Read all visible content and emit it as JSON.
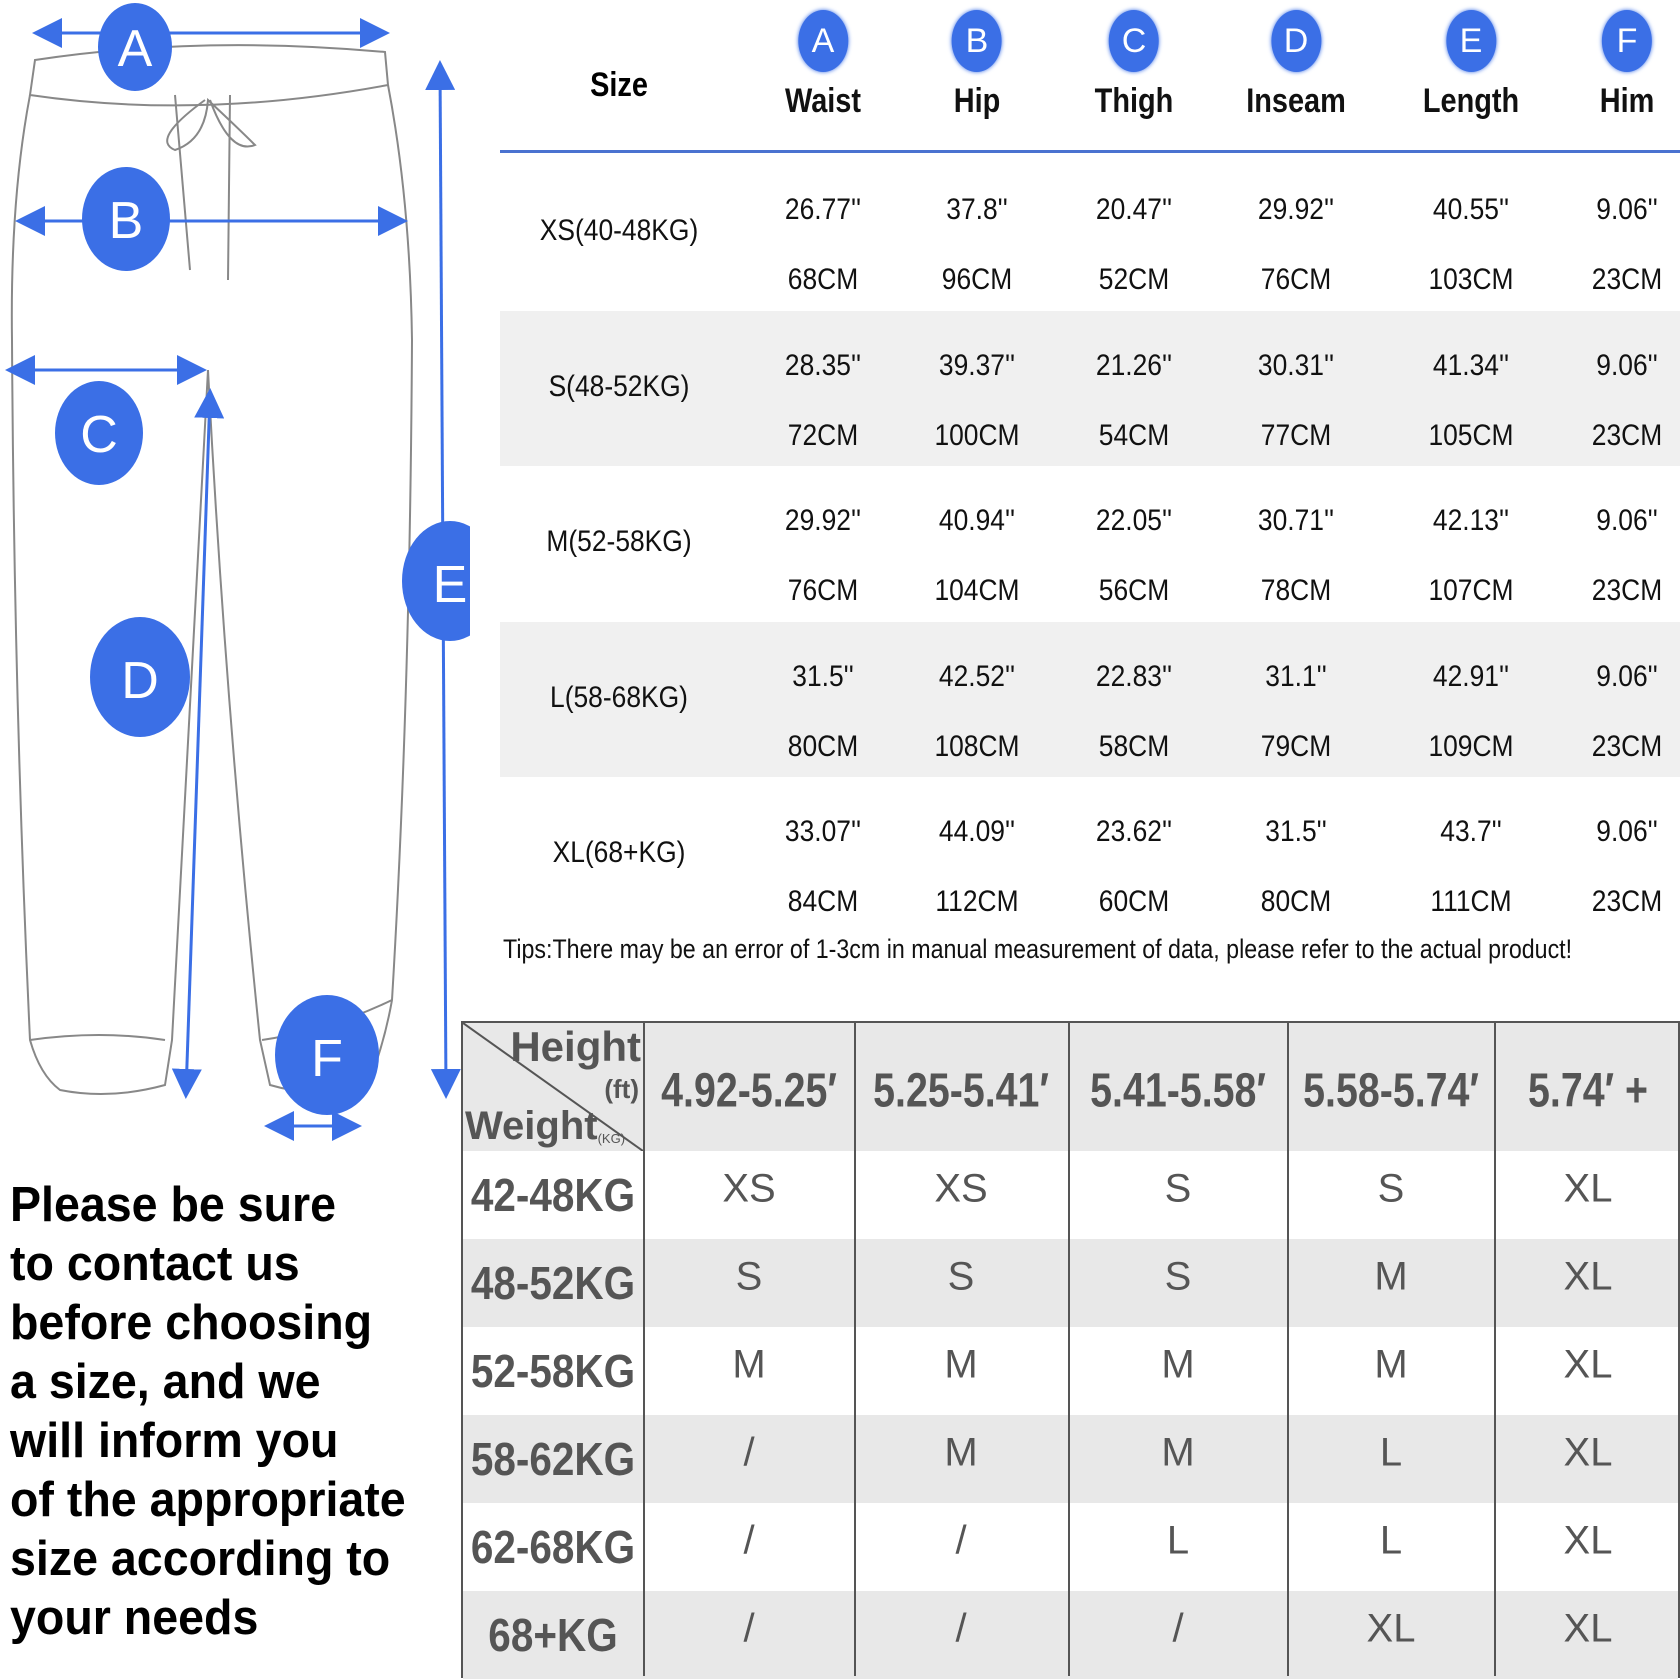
{
  "colors": {
    "accent": "#3b6fe6",
    "rule": "#4a72d0",
    "row_stripe": "#f0f0f0"
  },
  "diagram": {
    "labels": [
      "A",
      "B",
      "C",
      "D",
      "E",
      "F"
    ]
  },
  "measure_table": {
    "size_header": "Size",
    "columns": [
      {
        "letter": "A",
        "label": "Waist"
      },
      {
        "letter": "B",
        "label": "Hip"
      },
      {
        "letter": "C",
        "label": "Thigh"
      },
      {
        "letter": "D",
        "label": "Inseam"
      },
      {
        "letter": "E",
        "label": "Length"
      },
      {
        "letter": "F",
        "label": "Him"
      }
    ],
    "rows": [
      {
        "size": "XS(40-48KG)",
        "inch": [
          "26.77''",
          "37.8''",
          "20.47''",
          "29.92''",
          "40.55''",
          "9.06''"
        ],
        "cm": [
          "68CM",
          "96CM",
          "52CM",
          "76CM",
          "103CM",
          "23CM"
        ]
      },
      {
        "size": "S(48-52KG)",
        "inch": [
          "28.35''",
          "39.37''",
          "21.26''",
          "30.31''",
          "41.34''",
          "9.06''"
        ],
        "cm": [
          "72CM",
          "100CM",
          "54CM",
          "77CM",
          "105CM",
          "23CM"
        ]
      },
      {
        "size": "M(52-58KG)",
        "inch": [
          "29.92''",
          "40.94''",
          "22.05''",
          "30.71''",
          "42.13''",
          "9.06''"
        ],
        "cm": [
          "76CM",
          "104CM",
          "56CM",
          "78CM",
          "107CM",
          "23CM"
        ]
      },
      {
        "size": "L(58-68KG)",
        "inch": [
          "31.5''",
          "42.52''",
          "22.83''",
          "31.1''",
          "42.91''",
          "9.06''"
        ],
        "cm": [
          "80CM",
          "108CM",
          "58CM",
          "79CM",
          "109CM",
          "23CM"
        ]
      },
      {
        "size": "XL(68+KG)",
        "inch": [
          "33.07''",
          "44.09''",
          "23.62''",
          "31.5''",
          "43.7''",
          "9.06''"
        ],
        "cm": [
          "84CM",
          "112CM",
          "60CM",
          "80CM",
          "111CM",
          "23CM"
        ]
      }
    ],
    "tips": "Tips:There may be an error of 1-3cm in manual measurement of data, please refer to the actual product!"
  },
  "fit_table": {
    "corner": {
      "height": "Height",
      "height_unit": "(ft)",
      "weight": "Weight",
      "weight_unit": "(KG)"
    },
    "heights": [
      "4.92-5.25′",
      "5.25-5.41′",
      "5.41-5.58′",
      "5.58-5.74′",
      "5.74′ +"
    ],
    "rows": [
      {
        "weight": "42-48KG",
        "sizes": [
          "XS",
          "XS",
          "S",
          "S",
          "XL"
        ]
      },
      {
        "weight": "48-52KG",
        "sizes": [
          "S",
          "S",
          "S",
          "M",
          "XL"
        ]
      },
      {
        "weight": "52-58KG",
        "sizes": [
          "M",
          "M",
          "M",
          "M",
          "XL"
        ]
      },
      {
        "weight": "58-62KG",
        "sizes": [
          "/",
          "M",
          "M",
          "L",
          "XL"
        ]
      },
      {
        "weight": "62-68KG",
        "sizes": [
          "/",
          "/",
          "L",
          "L",
          "XL"
        ]
      },
      {
        "weight": "68+KG",
        "sizes": [
          "/",
          "/",
          "/",
          "XL",
          "XL"
        ]
      }
    ]
  },
  "notice": [
    "Please be sure",
    "to contact us",
    "before choosing",
    "a size, and we",
    "will inform you",
    "of the appropriate",
    "size according to",
    "your needs"
  ]
}
